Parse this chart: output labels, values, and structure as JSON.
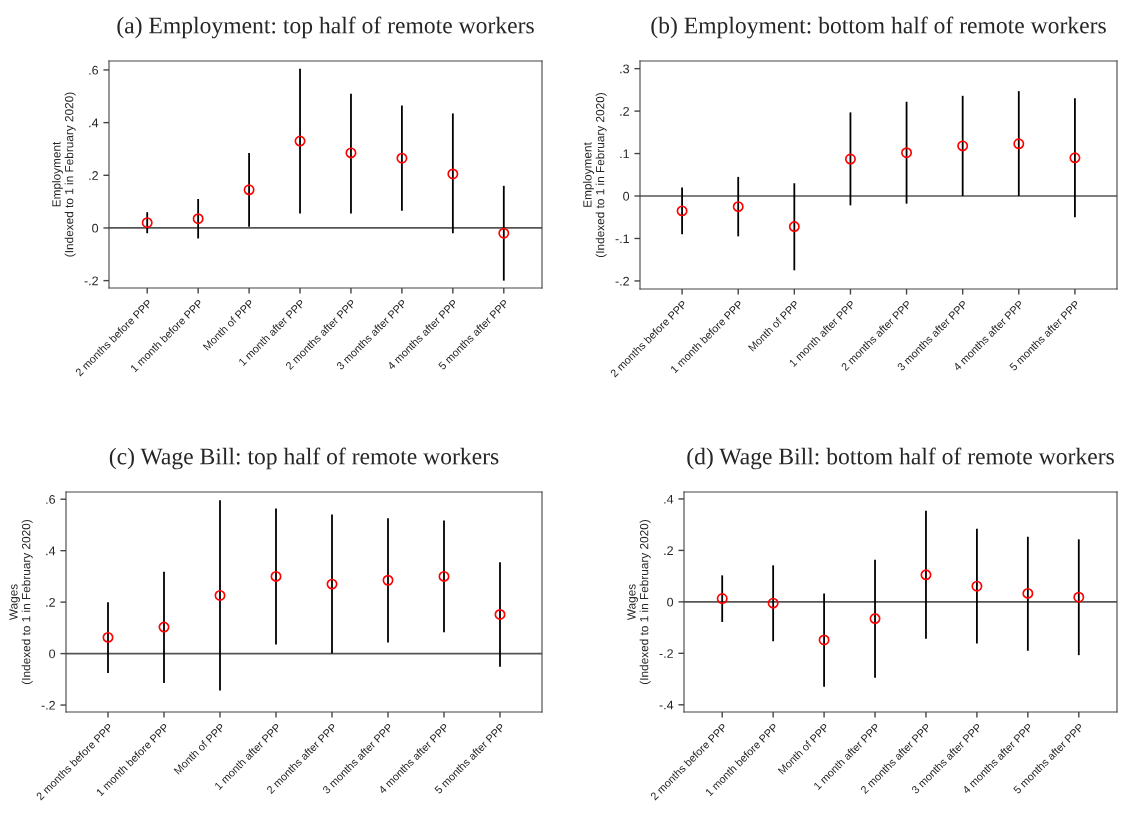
{
  "chart_data": [
    {
      "type": "scatter",
      "title": "(a) Employment: top half of remote workers",
      "ylabel": "Employment\n(Indexed to 1 in February 2020)",
      "categories": [
        "2 months before PPP",
        "1 month before PPP",
        "Month of PPP",
        "1 month after PPP",
        "2 months after PPP",
        "3 months after PPP",
        "4 months after PPP",
        "5 months after PPP"
      ],
      "series": [
        {
          "color": "#ff0000",
          "values": [
            0.02,
            0.035,
            0.145,
            0.33,
            0.285,
            0.265,
            0.205,
            -0.02
          ],
          "errors": [
            [
              -0.02,
              0.06
            ],
            [
              -0.04,
              0.11
            ],
            [
              0.005,
              0.285
            ],
            [
              0.055,
              0.605
            ],
            [
              0.055,
              0.51
            ],
            [
              0.065,
              0.465
            ],
            [
              -0.02,
              0.435
            ],
            [
              -0.2,
              0.16
            ]
          ]
        }
      ],
      "ylim": [
        -0.228,
        0.634
      ],
      "yticks": [
        {
          "value": -0.2,
          "label": "-.2"
        },
        0,
        {
          "value": 0.2,
          "label": ".2"
        },
        {
          "value": 0.4,
          "label": ".4"
        },
        {
          "value": 0.6,
          "label": ".6"
        }
      ],
      "ref_lines": [
        {
          "axis": "y",
          "value": 0,
          "color": "#555555"
        }
      ],
      "marker": "circle",
      "grid": false,
      "legend": false
    },
    {
      "type": "scatter",
      "title": "(b) Employment: bottom half of remote workers",
      "ylabel": "Employment\n(Indexed to 1 in February 2020)",
      "categories": [
        "2 months before PPP",
        "1 month before PPP",
        "Month of PPP",
        "1 month after PPP",
        "2 months after PPP",
        "3 months after PPP",
        "4 months after PPP",
        "5 months after PPP"
      ],
      "series": [
        {
          "color": "#ff0000",
          "values": [
            -0.035,
            -0.025,
            -0.072,
            0.087,
            0.102,
            0.118,
            0.123,
            0.09
          ],
          "errors": [
            [
              -0.09,
              0.02
            ],
            [
              -0.095,
              0.045
            ],
            [
              -0.175,
              0.03
            ],
            [
              -0.022,
              0.197
            ],
            [
              -0.018,
              0.222
            ],
            [
              0,
              0.236
            ],
            [
              0,
              0.247
            ],
            [
              -0.05,
              0.23
            ]
          ]
        }
      ],
      "ylim": [
        -0.219,
        0.318
      ],
      "yticks": [
        {
          "value": -0.2,
          "label": "-.2"
        },
        {
          "value": -0.1,
          "label": "-.1"
        },
        0,
        {
          "value": 0.1,
          "label": ".1"
        },
        {
          "value": 0.2,
          "label": ".2"
        },
        {
          "value": 0.3,
          "label": ".3"
        }
      ],
      "ref_lines": [
        {
          "axis": "y",
          "value": 0,
          "color": "#555555"
        }
      ],
      "marker": "circle",
      "grid": false,
      "legend": false
    },
    {
      "type": "scatter",
      "title": "(c) Wage Bill: top half of remote workers",
      "ylabel": "Wages\n(Indexed to 1 in February 2020)",
      "categories": [
        "2 months before PPP",
        "1 month before PPP",
        "Month of PPP",
        "1 month after PPP",
        "2 months after PPP",
        "3 months after PPP",
        "4 months after PPP",
        "5 months after PPP"
      ],
      "series": [
        {
          "color": "#ff0000",
          "values": [
            0.063,
            0.103,
            0.226,
            0.3,
            0.27,
            0.285,
            0.3,
            0.152
          ],
          "errors": [
            [
              -0.075,
              0.2
            ],
            [
              -0.114,
              0.318
            ],
            [
              -0.143,
              0.596
            ],
            [
              0.035,
              0.564
            ],
            [
              0,
              0.541
            ],
            [
              0.043,
              0.526
            ],
            [
              0.083,
              0.517
            ],
            [
              -0.051,
              0.355
            ]
          ]
        }
      ],
      "ylim": [
        -0.227,
        0.628
      ],
      "yticks": [
        {
          "value": -0.2,
          "label": "-.2"
        },
        0,
        {
          "value": 0.2,
          "label": ".2"
        },
        {
          "value": 0.4,
          "label": ".4"
        },
        {
          "value": 0.6,
          "label": ".6"
        }
      ],
      "ref_lines": [
        {
          "axis": "y",
          "value": 0,
          "color": "#555555"
        }
      ],
      "marker": "circle",
      "grid": false,
      "legend": false
    },
    {
      "type": "scatter",
      "title": "(d) Wage Bill: bottom half of remote workers",
      "ylabel": "Wages\n(Indexed to 1 in February 2020)",
      "categories": [
        "2 months before PPP",
        "1 month before PPP",
        "Month of PPP",
        "1 month after PPP",
        "2 months after PPP",
        "3 months after PPP",
        "4 months after PPP",
        "5 months after PPP"
      ],
      "series": [
        {
          "color": "#ff0000",
          "values": [
            0.013,
            -0.005,
            -0.148,
            -0.065,
            0.105,
            0.061,
            0.033,
            0.018
          ],
          "errors": [
            [
              -0.078,
              0.103
            ],
            [
              -0.153,
              0.142
            ],
            [
              -0.33,
              0.033
            ],
            [
              -0.295,
              0.164
            ],
            [
              -0.143,
              0.354
            ],
            [
              -0.162,
              0.284
            ],
            [
              -0.19,
              0.253
            ],
            [
              -0.207,
              0.243
            ]
          ]
        }
      ],
      "ylim": [
        -0.428,
        0.427
      ],
      "yticks": [
        {
          "value": -0.4,
          "label": "-.4"
        },
        {
          "value": -0.2,
          "label": "-.2"
        },
        0,
        {
          "value": 0.2,
          "label": ".2"
        },
        {
          "value": 0.4,
          "label": ".4"
        }
      ],
      "ref_lines": [
        {
          "axis": "y",
          "value": 0,
          "color": "#555555"
        }
      ],
      "marker": "circle",
      "grid": false,
      "legend": false
    }
  ]
}
